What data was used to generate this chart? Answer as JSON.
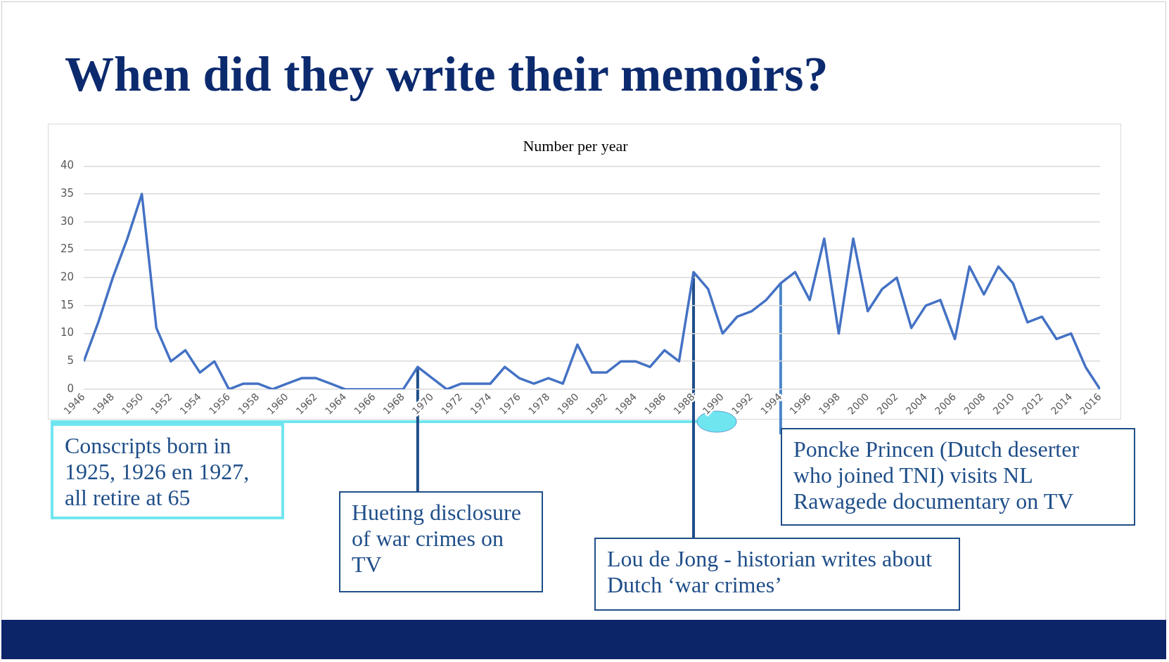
{
  "chart_data": {
    "type": "line",
    "title": "When did they write their memoirs?",
    "subtitle": "Number per year",
    "x": [
      1946,
      1947,
      1948,
      1949,
      1950,
      1951,
      1952,
      1953,
      1954,
      1955,
      1956,
      1957,
      1958,
      1959,
      1960,
      1961,
      1962,
      1963,
      1964,
      1965,
      1966,
      1967,
      1968,
      1969,
      1970,
      1971,
      1972,
      1973,
      1974,
      1975,
      1976,
      1977,
      1978,
      1979,
      1980,
      1981,
      1982,
      1983,
      1984,
      1985,
      1986,
      1987,
      1988,
      1989,
      1990,
      1991,
      1992,
      1993,
      1994,
      1995,
      1996,
      1997,
      1998,
      1999,
      2000,
      2001,
      2002,
      2003,
      2004,
      2005,
      2006,
      2007,
      2008,
      2009,
      2010,
      2011,
      2012,
      2013,
      2014,
      2015,
      2016
    ],
    "values": [
      5,
      12,
      20,
      27,
      35,
      11,
      5,
      7,
      3,
      5,
      0,
      1,
      1,
      0,
      1,
      2,
      2,
      1,
      0,
      0,
      0,
      0,
      0,
      4,
      2,
      0,
      1,
      1,
      1,
      4,
      2,
      1,
      2,
      1,
      8,
      3,
      3,
      5,
      5,
      4,
      7,
      5,
      21,
      18,
      10,
      13,
      14,
      16,
      19,
      21,
      16,
      27,
      10,
      27,
      14,
      18,
      20,
      11,
      15,
      16,
      9,
      22,
      17,
      22,
      19,
      12,
      13,
      9,
      10,
      4,
      0
    ],
    "color": "#4472c4",
    "xlim": [
      1946,
      2016
    ],
    "xticks": [
      1946,
      1948,
      1950,
      1952,
      1954,
      1956,
      1958,
      1960,
      1962,
      1964,
      1966,
      1968,
      1970,
      1972,
      1974,
      1976,
      1978,
      1980,
      1982,
      1984,
      1986,
      1988,
      1990,
      1992,
      1994,
      1996,
      1998,
      2000,
      2002,
      2004,
      2006,
      2008,
      2010,
      2012,
      2014,
      2016
    ],
    "ylim": [
      0,
      40
    ],
    "yticks": [
      0,
      5,
      10,
      15,
      20,
      25,
      30,
      35,
      40
    ],
    "grid": "y",
    "marker": "none",
    "legend": false,
    "annotations": [
      "Conscripts born in 1925, 1926 en 1927, all retire at 65",
      {
        "text": "Hueting disclosure of war crimes on TV",
        "x": 1969,
        "y": 4
      },
      {
        "text": "Lou de Jong - historian writes about Dutch ‘war crimes’",
        "x": 1988,
        "y": 21
      },
      {
        "text": "Poncke Princen (Dutch deserter who joined TNI) visits NL Rawagede  documentary on TV",
        "x": 1994,
        "y": 19
      }
    ]
  }
}
